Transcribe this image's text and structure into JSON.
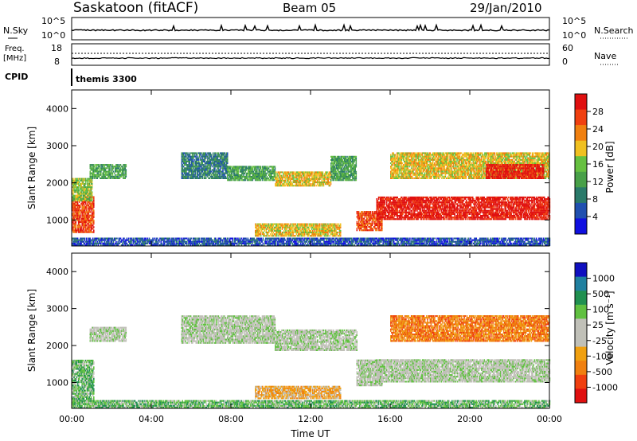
{
  "header": {
    "station": "Saskatoon (fitACF)",
    "beam": "Beam 05",
    "date": "29/Jan/2010"
  },
  "strip_panels": {
    "nsky": {
      "left_label": "N.Sky",
      "right_label": "N.Search",
      "left_ticks": [
        "10^5",
        "10^0"
      ],
      "right_ticks": [
        "10^5",
        "10^0"
      ]
    },
    "freq": {
      "left_label_1": "Freq.",
      "left_label_2": "[MHz]",
      "right_label": "Nave",
      "left_ticks": [
        "18",
        "8"
      ],
      "right_ticks": [
        "60",
        "0"
      ]
    },
    "cpid": {
      "left_label": "CPID",
      "program": "themis 3300"
    }
  },
  "colors": {
    "power_scale": [
      "#1010e0",
      "#2050b0",
      "#2a7a6a",
      "#48a048",
      "#66c040",
      "#f0c020",
      "#f08010",
      "#f04010",
      "#e01010"
    ],
    "velocity_scale": [
      "#1010c0",
      "#2080a0",
      "#209050",
      "#60c040",
      "#c0c0b8",
      "#c0c0b8",
      "#f0a010",
      "#f08010",
      "#f04010",
      "#e01010"
    ]
  },
  "chart_data": [
    {
      "type": "heatmap",
      "name": "power",
      "ylabel": "Slant Range [km]",
      "yticks": [
        "1000",
        "2000",
        "3000",
        "4000"
      ],
      "ylim": [
        300,
        4500
      ],
      "xlim": [
        0,
        24
      ],
      "colorbar_label": "Power [dB]",
      "colorbar_ticks": [
        "4",
        "8",
        "12",
        "16",
        "20",
        "24",
        "28"
      ],
      "bands": [
        {
          "t0": 0.0,
          "t1": 1.1,
          "r0": 650,
          "r1": 1600,
          "level": 7
        },
        {
          "t0": 0.0,
          "t1": 1.0,
          "r0": 1500,
          "r1": 2100,
          "level": 4
        },
        {
          "t0": 0.9,
          "t1": 2.7,
          "r0": 2100,
          "r1": 2500,
          "level": 3
        },
        {
          "t0": 5.5,
          "t1": 7.8,
          "r0": 2100,
          "r1": 2800,
          "level": 2
        },
        {
          "t0": 7.8,
          "t1": 10.2,
          "r0": 2050,
          "r1": 2450,
          "level": 3
        },
        {
          "t0": 10.2,
          "t1": 13.0,
          "r0": 1900,
          "r1": 2300,
          "level": 5
        },
        {
          "t0": 13.0,
          "t1": 14.3,
          "r0": 2050,
          "r1": 2700,
          "level": 3
        },
        {
          "t0": 9.2,
          "t1": 13.5,
          "r0": 550,
          "r1": 900,
          "level": 5
        },
        {
          "t0": 14.3,
          "t1": 15.6,
          "r0": 700,
          "r1": 1200,
          "level": 7
        },
        {
          "t0": 15.3,
          "t1": 24.0,
          "r0": 1000,
          "r1": 1600,
          "level": 8
        },
        {
          "t0": 16.0,
          "t1": 24.0,
          "r0": 2100,
          "r1": 2800,
          "level": 5
        },
        {
          "t0": 20.8,
          "t1": 23.7,
          "r0": 2100,
          "r1": 2500,
          "level": 8
        },
        {
          "t0": 0.0,
          "t1": 24.0,
          "r0": 300,
          "r1": 500,
          "level": 1
        }
      ]
    },
    {
      "type": "heatmap",
      "name": "velocity",
      "ylabel": "Slant Range [km]",
      "yticks": [
        "1000",
        "2000",
        "3000",
        "4000"
      ],
      "ylim": [
        300,
        4500
      ],
      "xlim": [
        0,
        24
      ],
      "xlabel": "Time UT",
      "xticks": [
        "00:00",
        "04:00",
        "08:00",
        "12:00",
        "16:00",
        "20:00",
        "00:00"
      ],
      "colorbar_label": "Velocity [m s⁻¹]",
      "colorbar_ticks": [
        "1000",
        "500",
        "100",
        "25",
        "-25",
        "-100",
        "-500",
        "-1000"
      ],
      "bands": [
        {
          "t0": 0.0,
          "t1": 1.1,
          "r0": 400,
          "r1": 1600,
          "level": 3
        },
        {
          "t0": 0.9,
          "t1": 2.7,
          "r0": 2100,
          "r1": 2500,
          "level": 4
        },
        {
          "t0": 5.5,
          "t1": 10.2,
          "r0": 2050,
          "r1": 2800,
          "level": 4
        },
        {
          "t0": 10.2,
          "t1": 14.3,
          "r0": 1850,
          "r1": 2400,
          "level": 4
        },
        {
          "t0": 9.2,
          "t1": 13.5,
          "r0": 550,
          "r1": 900,
          "level": 6
        },
        {
          "t0": 14.3,
          "t1": 15.6,
          "r0": 900,
          "r1": 1600,
          "level": 4
        },
        {
          "t0": 15.3,
          "t1": 24.0,
          "r0": 1000,
          "r1": 1600,
          "level": 4
        },
        {
          "t0": 16.0,
          "t1": 24.0,
          "r0": 2100,
          "r1": 2800,
          "level": 7
        },
        {
          "t0": 0.0,
          "t1": 24.0,
          "r0": 300,
          "r1": 500,
          "level": 3
        }
      ]
    }
  ]
}
